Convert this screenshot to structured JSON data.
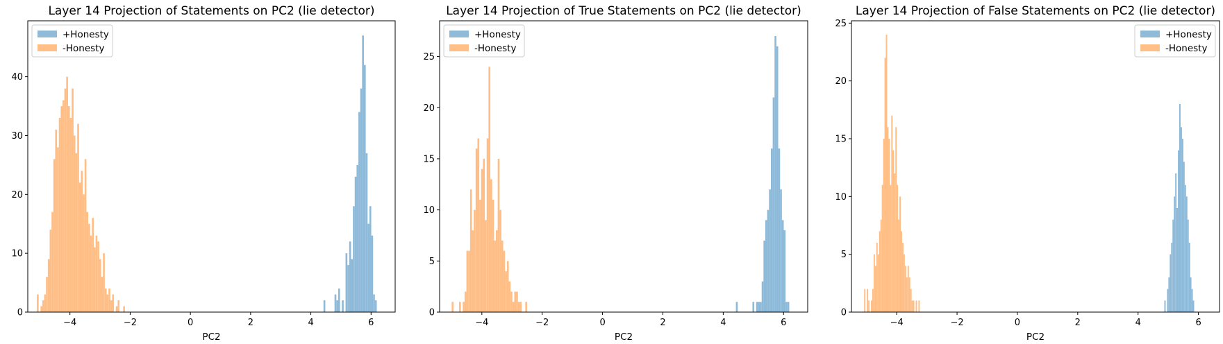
{
  "chart_data": [
    {
      "type": "histogram",
      "title": "Layer 14 Projection of Statements on PC2 (lie detector)",
      "xlabel": "PC2",
      "ylabel": "",
      "xlim": [
        -5.4,
        6.8
      ],
      "ylim": [
        0,
        49.5
      ],
      "xticks": [
        -4,
        -2,
        0,
        2,
        4,
        6
      ],
      "yticks": [
        0,
        10,
        20,
        30,
        40
      ],
      "grid": false,
      "legend_position": "upper-left",
      "series": [
        {
          "name": "+Honesty",
          "color": "#1f77b4",
          "bin_start": 4.42,
          "bin_width": 0.061,
          "counts": [
            2,
            0,
            0,
            0,
            0,
            0,
            3,
            2,
            4,
            0,
            2,
            0,
            10,
            8,
            12,
            9,
            18,
            23,
            25,
            34,
            38,
            47,
            42,
            27,
            15,
            18,
            13,
            3,
            2
          ]
        },
        {
          "name": "-Honesty",
          "color": "#ff7f0e",
          "bin_start": -5.1,
          "bin_width": 0.061,
          "counts": [
            3,
            0,
            1,
            2,
            3,
            6,
            9,
            14,
            17,
            26,
            31,
            28,
            33,
            35,
            36,
            38,
            40,
            35,
            33,
            38,
            30,
            27,
            32,
            22,
            24,
            20,
            26,
            17,
            15,
            13,
            16,
            11,
            13,
            12,
            9,
            6,
            10,
            4,
            3,
            4,
            2,
            3,
            0,
            1,
            2,
            0,
            0,
            1
          ]
        }
      ]
    },
    {
      "type": "histogram",
      "title": "Layer 14 Projection of True Statements on PC2 (lie detector)",
      "xlabel": "PC2",
      "ylabel": "",
      "xlim": [
        -5.4,
        6.8
      ],
      "ylim": [
        0,
        28.5
      ],
      "xticks": [
        -4,
        -2,
        0,
        2,
        4,
        6
      ],
      "yticks": [
        0,
        5,
        10,
        15,
        20,
        25
      ],
      "grid": false,
      "legend_position": "upper-left",
      "series": [
        {
          "name": "+Honesty",
          "color": "#1f77b4",
          "bin_start": 4.42,
          "bin_width": 0.061,
          "counts": [
            1,
            0,
            0,
            0,
            0,
            0,
            0,
            0,
            0,
            1,
            0,
            1,
            1,
            1,
            3,
            7,
            9,
            10,
            12,
            16,
            21,
            27,
            26,
            16,
            12,
            9,
            8,
            1,
            1
          ]
        },
        {
          "name": "-Honesty",
          "color": "#ff7f0e",
          "bin_start": -5.0,
          "bin_width": 0.061,
          "counts": [
            1,
            0,
            0,
            0,
            1,
            0,
            1,
            2,
            6,
            6,
            12,
            8,
            10,
            16,
            17,
            11,
            14,
            15,
            9,
            17,
            24,
            13,
            11,
            7,
            8,
            15,
            10,
            7,
            6,
            4,
            5,
            3,
            2,
            1,
            2,
            2,
            1,
            1,
            0,
            0,
            1
          ]
        }
      ]
    },
    {
      "type": "histogram",
      "title": "Layer 14 Projection of False Statements on PC2 (lie detector)",
      "xlabel": "PC2",
      "ylabel": "",
      "xlim": [
        -5.5,
        6.7
      ],
      "ylim": [
        0,
        25.2
      ],
      "xticks": [
        -4,
        -2,
        0,
        2,
        4,
        6
      ],
      "yticks": [
        0,
        5,
        10,
        15,
        20,
        25
      ],
      "grid": false,
      "legend_position": "upper-right",
      "series": [
        {
          "name": "+Honesty",
          "color": "#1f77b4",
          "bin_start": 4.87,
          "bin_width": 0.045,
          "counts": [
            1,
            0,
            2,
            3,
            5,
            6,
            8,
            10,
            12,
            9,
            14,
            18,
            16,
            15,
            13,
            11,
            10,
            8,
            6,
            3,
            2,
            1
          ]
        },
        {
          "name": "-Honesty",
          "color": "#ff7f0e",
          "bin_start": -5.08,
          "bin_width": 0.045,
          "counts": [
            2,
            0,
            2,
            1,
            0,
            1,
            2,
            5,
            4,
            6,
            5,
            7,
            8,
            11,
            15,
            22,
            24,
            16,
            15,
            11,
            17,
            14,
            12,
            16,
            11,
            8,
            10,
            7,
            6,
            5,
            4,
            3,
            4,
            3,
            2,
            1,
            1,
            0,
            1,
            0,
            1
          ]
        }
      ]
    }
  ]
}
